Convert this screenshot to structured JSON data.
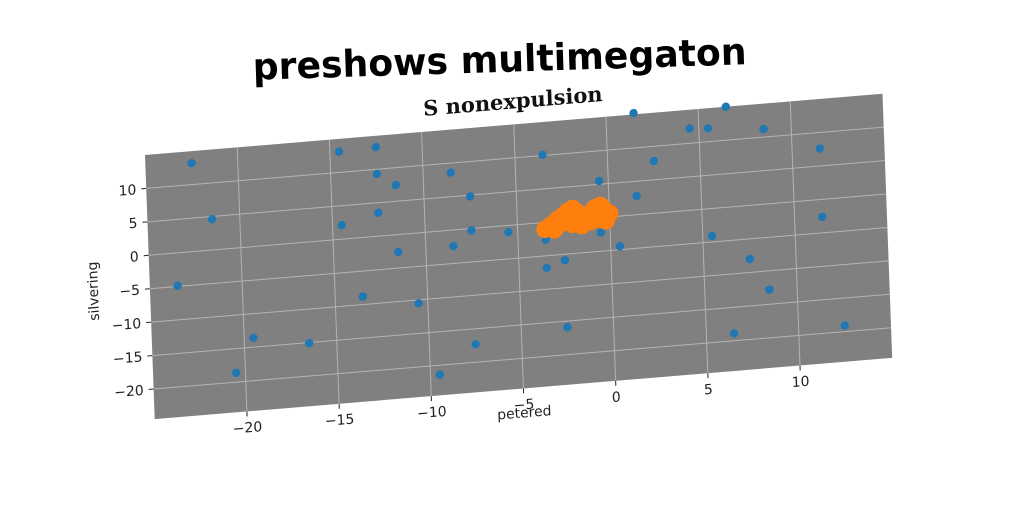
{
  "suptitle": "preshows multimegaton",
  "chart_data": {
    "type": "scatter",
    "title": "S nonexpulsion",
    "xlabel": "petered",
    "ylabel": "silvering",
    "xlim": [
      -25,
      15
    ],
    "ylim": [
      -24.5,
      15
    ],
    "xticks": [
      -20,
      -15,
      -10,
      -5,
      0,
      5,
      10
    ],
    "yticks": [
      -20,
      -15,
      -10,
      -5,
      0,
      5,
      10
    ],
    "grid": true,
    "background_color": "#808080",
    "series": [
      {
        "color": "#1f77b4",
        "points": [
          [
            -22.5,
            13.2
          ],
          [
            -14.5,
            13.1
          ],
          [
            -12.5,
            13.3
          ],
          [
            -12.5,
            9.3
          ],
          [
            -11.5,
            7.4
          ],
          [
            -8.5,
            8.6
          ],
          [
            -3.5,
            10.1
          ],
          [
            1.5,
            15.2
          ],
          [
            6.5,
            15.0
          ],
          [
            4.5,
            12.2
          ],
          [
            5.5,
            12.0
          ],
          [
            8.5,
            11.2
          ],
          [
            2.5,
            7.8
          ],
          [
            11.5,
            7.6
          ],
          [
            -21.5,
            4.6
          ],
          [
            -12.5,
            3.5
          ],
          [
            -7.5,
            4.8
          ],
          [
            -0.5,
            5.5
          ],
          [
            1.5,
            2.8
          ],
          [
            -14.5,
            2.1
          ],
          [
            -7.5,
            -0.3
          ],
          [
            -5.5,
            -1.0
          ],
          [
            -11.5,
            -2.6
          ],
          [
            -8.5,
            -2.4
          ],
          [
            -3.5,
            -2.6
          ],
          [
            -0.5,
            -2.2
          ],
          [
            -23.5,
            -4.9
          ],
          [
            -2.5,
            -5.9
          ],
          [
            -3.5,
            -6.8
          ],
          [
            0.5,
            -4.5
          ],
          [
            5.5,
            -4.1
          ],
          [
            11.5,
            -2.6
          ],
          [
            -13.5,
            -8.8
          ],
          [
            -10.5,
            -10.5
          ],
          [
            7.5,
            -8.0
          ],
          [
            -19.5,
            -13.6
          ],
          [
            -16.5,
            -15.1
          ],
          [
            -2.5,
            -15.9
          ],
          [
            -7.5,
            -17.3
          ],
          [
            8.5,
            -12.8
          ],
          [
            -20.5,
            -18.6
          ],
          [
            6.5,
            -18.9
          ],
          [
            12.5,
            -19.1
          ],
          [
            -9.5,
            -21.4
          ]
        ]
      },
      {
        "color": "#ff7f0e",
        "points": [
          [
            -3.5,
            -1.0
          ],
          [
            -3.2,
            -0.5
          ],
          [
            -3.0,
            -0.2
          ],
          [
            -2.8,
            0.3
          ],
          [
            -2.5,
            0.8
          ],
          [
            -2.3,
            1.3
          ],
          [
            -2.0,
            1.7
          ],
          [
            -1.8,
            1.2
          ],
          [
            -1.5,
            0.6
          ],
          [
            -1.3,
            0.2
          ],
          [
            -1.0,
            0.8
          ],
          [
            -0.8,
            1.5
          ],
          [
            -0.5,
            1.8
          ],
          [
            -0.3,
            1.2
          ],
          [
            0.0,
            0.5
          ],
          [
            -2.6,
            -0.3
          ],
          [
            -2.0,
            -0.6
          ],
          [
            -1.5,
            -0.9
          ],
          [
            -1.0,
            -0.4
          ],
          [
            -0.5,
            -0.2
          ],
          [
            -3.0,
            -1.2
          ],
          [
            -2.2,
            0.1
          ],
          [
            -1.7,
            0.0
          ],
          [
            -0.7,
            0.5
          ],
          [
            -0.2,
            -0.5
          ]
        ]
      }
    ]
  }
}
